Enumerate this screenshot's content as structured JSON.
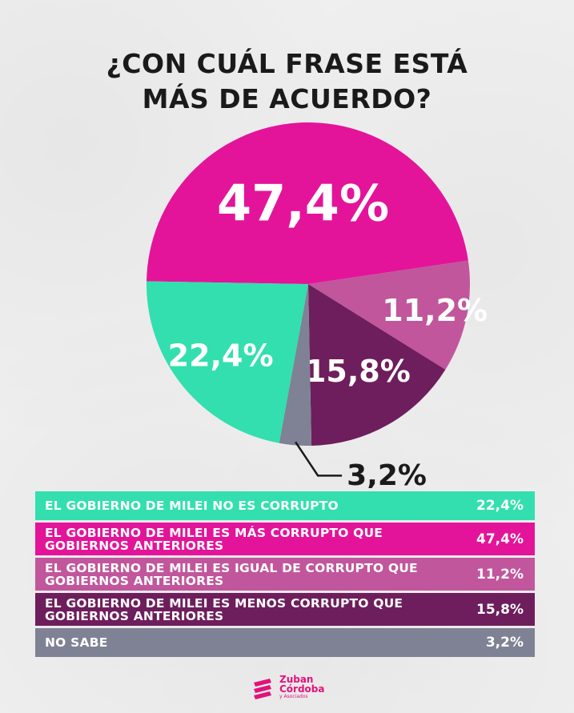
{
  "title_lines": [
    "¿CON CUÁL FRASE ESTÁ",
    "MÁS DE ACUERDO?"
  ],
  "chart_data": {
    "type": "pie",
    "title": "¿CON CUÁL FRASE ESTÁ MÁS DE ACUERDO?",
    "start_angle_deg": 181,
    "slices": [
      {
        "label": "EL GOBIERNO DE MILEI ES MÁS CORRUPTO QUE GOBIERNOS ANTERIORES",
        "value": 47.4,
        "display": "47,4%",
        "color": "#e3149a"
      },
      {
        "label": "EL GOBIERNO DE MILEI ES IGUAL DE CORRUPTO QUE GOBIERNOS ANTERIORES",
        "value": 11.2,
        "display": "11,2%",
        "color": "#c1569c"
      },
      {
        "label": "EL GOBIERNO DE MILEI ES MENOS CORRUPTO QUE GOBIERNOS ANTERIORES",
        "value": 15.8,
        "display": "15,8%",
        "color": "#6e1e5c"
      },
      {
        "label": "NO SABE",
        "value": 3.2,
        "display": "3,2%",
        "color": "#7e8294"
      },
      {
        "label": "EL GOBIERNO DE MILEI NO ES CORRUPTO",
        "value": 22.4,
        "display": "22,4%",
        "color": "#33dfae"
      }
    ]
  },
  "legend": [
    {
      "label": "EL GOBIERNO DE MILEI NO ES CORRUPTO",
      "value": "22,4%",
      "color": "#33dfae"
    },
    {
      "label": "EL GOBIERNO DE MILEI ES MÁS CORRUPTO QUE GOBIERNOS ANTERIORES",
      "value": "47,4%",
      "color": "#e3149a"
    },
    {
      "label": "EL GOBIERNO DE MILEI ES IGUAL DE CORRUPTO QUE GOBIERNOS ANTERIORES",
      "value": "11,2%",
      "color": "#c1569c"
    },
    {
      "label": "EL GOBIERNO DE MILEI ES MENOS CORRUPTO QUE GOBIERNOS ANTERIORES",
      "value": "15,8%",
      "color": "#6e1e5c"
    },
    {
      "label": "NO SABE",
      "value": "3,2%",
      "color": "#7e8294"
    }
  ],
  "logo": {
    "line1": "Zuban",
    "line2": "Córdoba",
    "line3": "y Asociados",
    "color": "#e3127a"
  }
}
